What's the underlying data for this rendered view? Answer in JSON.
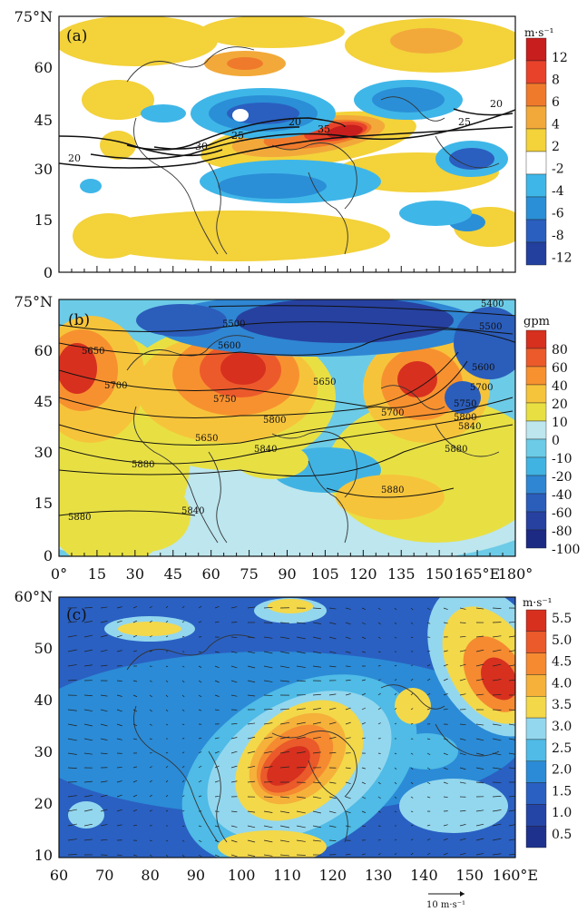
{
  "figure": {
    "panels": [
      {
        "id": "a",
        "label": "(a)",
        "lat_labels": [
          "75°N",
          "60",
          "45",
          "30",
          "15",
          "0"
        ],
        "unit": "m·s⁻¹",
        "colorbar_labels": [
          "12",
          "8",
          "6",
          "4",
          "2",
          "-2",
          "-4",
          "-6",
          "-8",
          "-12"
        ],
        "colors": [
          "#c81e1e",
          "#e8432a",
          "#f07a2c",
          "#f2a93a",
          "#f3d23a",
          "#ffffff",
          "#3fb6e8",
          "#2a8fd6",
          "#2a5fc0",
          "#23409e"
        ],
        "contour_labels": [
          "20",
          "25",
          "30",
          "35",
          "20",
          "25",
          "20"
        ]
      },
      {
        "id": "b",
        "label": "(b)",
        "lat_labels": [
          "75°N",
          "60",
          "45",
          "30",
          "15",
          "0"
        ],
        "lon_labels": [
          "0°",
          "15",
          "30",
          "45",
          "60",
          "75",
          "90",
          "105",
          "120",
          "135",
          "150",
          "165°E",
          "180°"
        ],
        "unit": "gpm",
        "colorbar_labels": [
          "80",
          "60",
          "40",
          "20",
          "10",
          "0",
          "-10",
          "-20",
          "-40",
          "-60",
          "-80",
          "-100"
        ],
        "colors": [
          "#d7301f",
          "#ec5a2b",
          "#f7912f",
          "#f6c43b",
          "#e8e043",
          "#bde6ee",
          "#6ccbe7",
          "#41b3e3",
          "#2f86d3",
          "#2b5dbb",
          "#2741a0",
          "#1d2a84"
        ],
        "contour_labels": [
          "5400",
          "5500",
          "5500",
          "5600",
          "5600",
          "5650",
          "5650",
          "5650",
          "5700",
          "5700",
          "5700",
          "5750",
          "5750",
          "5800",
          "5800",
          "5840",
          "5840",
          "5840",
          "5880",
          "5880",
          "5880",
          "5880"
        ]
      },
      {
        "id": "c",
        "label": "(c)",
        "lat_labels": [
          "60°N",
          "50",
          "40",
          "30",
          "20",
          "10"
        ],
        "lon_labels": [
          "60",
          "70",
          "80",
          "90",
          "100",
          "110",
          "120",
          "130",
          "140",
          "150",
          "160°E"
        ],
        "unit": "m·s⁻¹",
        "colorbar_labels": [
          "5.5",
          "5.0",
          "4.5",
          "4.0",
          "3.5",
          "3.0",
          "2.5",
          "2.0",
          "1.5",
          "1.0",
          "0.5"
        ],
        "colors": [
          "#d7301f",
          "#ea5a2a",
          "#f58a31",
          "#f5b13a",
          "#f3d84a",
          "#93d7ee",
          "#4fbbe6",
          "#2b8bd6",
          "#2a60c2",
          "#2545a6",
          "#1e328d"
        ],
        "reference_vector_label": "10 m·s⁻¹"
      }
    ]
  }
}
